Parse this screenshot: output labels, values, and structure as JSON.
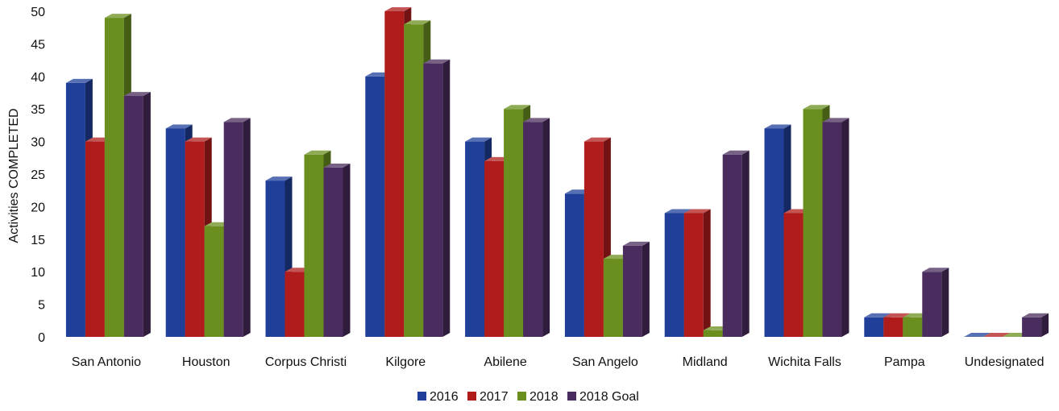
{
  "chart_data": {
    "type": "bar",
    "title": "",
    "xlabel": "",
    "ylabel": "Activities COMPLETED",
    "ylim": [
      0,
      50
    ],
    "yticks": [
      0,
      5,
      10,
      15,
      20,
      25,
      30,
      35,
      40,
      45,
      50
    ],
    "grid": false,
    "legend_position": "bottom",
    "categories": [
      "San Antonio",
      "Houston",
      "Corpus Christi",
      "Kilgore",
      "Abilene",
      "San Angelo",
      "Midland",
      "Wichita Falls",
      "Pampa",
      "Undesignated"
    ],
    "series": [
      {
        "name": "2016",
        "color": "#1f3f99",
        "values": [
          39,
          32,
          24,
          40,
          30,
          22,
          19,
          32,
          3,
          0
        ]
      },
      {
        "name": "2017",
        "color": "#b01c1c",
        "values": [
          30,
          30,
          10,
          50,
          27,
          30,
          19,
          19,
          3,
          0
        ]
      },
      {
        "name": "2018",
        "color": "#6a8f1e",
        "values": [
          49,
          17,
          28,
          48,
          35,
          12,
          1,
          35,
          3,
          0
        ]
      },
      {
        "name": "2018 Goal",
        "color": "#4a2d5e",
        "values": [
          37,
          33,
          26,
          42,
          33,
          14,
          28,
          33,
          10,
          3
        ]
      }
    ]
  }
}
